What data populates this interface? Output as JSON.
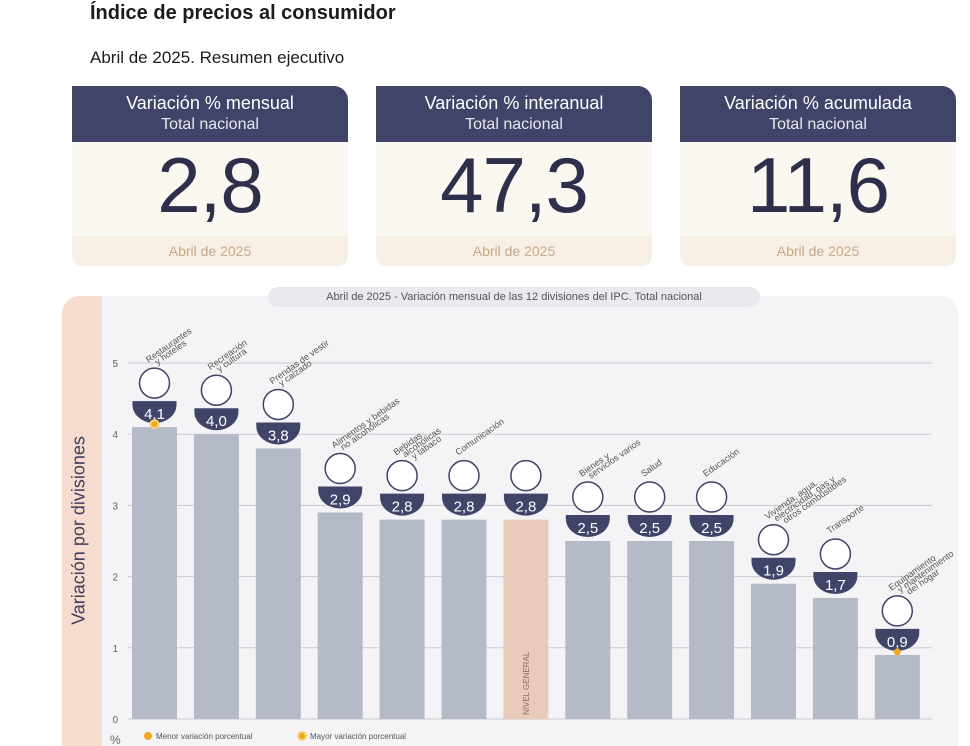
{
  "header": {
    "title": "Índice de precios al consumidor",
    "subtitle": "Abril de 2025. Resumen ejecutivo"
  },
  "cards": [
    {
      "title": "Variación % mensual",
      "subtitle": "Total nacional",
      "value": "2,8",
      "footer": "Abril de 2025"
    },
    {
      "title": "Variación % interanual",
      "subtitle": "Total nacional",
      "value": "47,3",
      "footer": "Abril de 2025"
    },
    {
      "title": "Variación % acumulada",
      "subtitle": "Total nacional",
      "value": "11,6",
      "footer": "Abril de 2025"
    }
  ],
  "colors": {
    "bar": "#b4bac8",
    "bar_general": "#e8cbbb",
    "badge": "#3f4468",
    "marker": "#f0a81e"
  },
  "chart_data": {
    "type": "bar",
    "title_prefix": "Abril de 2025",
    "title": " - Variación mensual de las 12 divisiones del IPC. Total nacional",
    "ylabel": "Variación por divisiones",
    "yunit": "%",
    "ylim": [
      0,
      5
    ],
    "yticks": [
      "0",
      "1",
      "2",
      "3",
      "4",
      "5"
    ],
    "grid": true,
    "categories": [
      "Restaurantes y hoteles",
      "Recreación y cultura",
      "Prendas de vestir y calzado",
      "Alimentos y bebidas no alcohólicas",
      "Bebidas alcohólicas y tabaco",
      "Comunicación",
      "Nivel general",
      "Bienes y servicios varios",
      "Salud",
      "Educación",
      "Vivienda, agua, electricidad, gas y otros combustibles",
      "Transporte",
      "Equipamiento y mantenimiento del hogar"
    ],
    "label_lines": [
      [
        "Restaurantes",
        "y hoteles"
      ],
      [
        "Recreación",
        "y cultura"
      ],
      [
        "Prendas de vestir",
        "y calzado"
      ],
      [
        "Alimentos y bebidas",
        "no alcohólicas"
      ],
      [
        "Bebidas",
        "alcohólicas",
        "y tabaco"
      ],
      [
        "Comunicación"
      ],
      [],
      [
        "Bienes y",
        "servicios varios"
      ],
      [
        "Salud"
      ],
      [
        "Educación"
      ],
      [
        "Vivienda, agua,",
        "electricidad, gas y",
        "otros combustibles"
      ],
      [
        "Transporte"
      ],
      [
        "Equipamiento",
        "y mantenimiento",
        "del hogar"
      ]
    ],
    "values": [
      4.1,
      4.0,
      3.8,
      2.9,
      2.8,
      2.8,
      2.8,
      2.5,
      2.5,
      2.5,
      1.9,
      1.7,
      0.9
    ],
    "value_labels": [
      "4,1",
      "4,0",
      "3,8",
      "2,9",
      "2,8",
      "2,8",
      "2,8",
      "2,5",
      "2,5",
      "2,5",
      "1,9",
      "1,7",
      "0,9"
    ],
    "icons": [
      "plate-cutlery-icon",
      "umbrella-sun-icon",
      "shirt-shoes-icon",
      "chicken-food-icon",
      "wine-bottle-icon",
      "smartphone-icon",
      "shopping-basket-icon",
      "scissors-comb-icon",
      "medical-cross-icon",
      "book-icon",
      "lightbulb-plug-icon",
      "car-bus-icon",
      "air-conditioner-icon"
    ],
    "general_index": 6,
    "general_label": "NIVEL GENERAL",
    "highlight": {
      "max_index": 0,
      "min_index": 12
    },
    "legend": [
      {
        "label": "Menor variación porcentual",
        "kind": "min"
      },
      {
        "label": "Mayor variación porcentual",
        "kind": "max"
      }
    ]
  }
}
